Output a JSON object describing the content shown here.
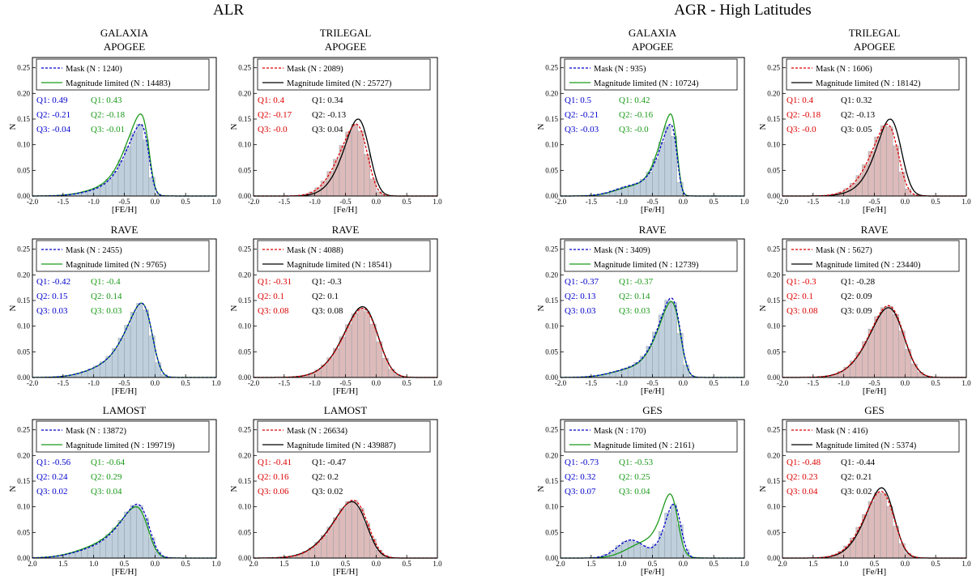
{
  "groups": [
    {
      "title": "ALR"
    },
    {
      "title": "AGR - High Latitudes"
    }
  ],
  "colors": {
    "galaxia_mask": "#0000cc",
    "galaxia_mag": "#1a9a1a",
    "trilegal_mask": "#dd0000",
    "trilegal_mag": "#000000",
    "galaxia_hist": "#a9bfd0",
    "trilegal_hist": "#d2a4a3"
  },
  "chart_data": [
    {
      "type": "area",
      "group": 0,
      "model": "GALAXIA",
      "survey": "APOGEE",
      "title": "GALAXIA",
      "subtitle": "APOGEE",
      "xlabel": "[FE/H]",
      "ylabel": "N",
      "xlim": [
        -2.0,
        1.0
      ],
      "ylim": [
        0,
        0.27
      ],
      "xticks": [
        "-2.0",
        "-1.5",
        "-1.0",
        "-0.5",
        "0.0",
        "0.5",
        "1.0"
      ],
      "yticks": [
        "0.00",
        "0.05",
        "0.10",
        "0.15",
        "0.20",
        "0.25"
      ],
      "legend": {
        "mask": "Mask (N : 1240)",
        "mag": "Magnitude limited (N : 14483)"
      },
      "quantiles": {
        "mask": [
          "Q1:  0.49",
          "Q2: -0.21",
          "Q3: -0.04"
        ],
        "mag": [
          "Q1:  0.43",
          "Q2: -0.18",
          "Q3: -0.01"
        ]
      },
      "curves": {
        "mask": {
          "mu": -0.1,
          "sigma": 0.32,
          "skew": -4,
          "peak": 0.14,
          "mu2": -0.8,
          "s2": 0.35,
          "f2": 0.15
        },
        "mag": {
          "mu": -0.1,
          "sigma": 0.32,
          "skew": -4,
          "peak": 0.16,
          "mu2": -0.8,
          "s2": 0.35,
          "f2": 0.15
        }
      }
    },
    {
      "type": "area",
      "group": 0,
      "model": "TRILEGAL",
      "survey": "APOGEE",
      "title": "TRILEGAL",
      "subtitle": "APOGEE",
      "xlabel": "[Fe/H]",
      "ylabel": "N",
      "xlim": [
        -2.0,
        1.0
      ],
      "ylim": [
        0,
        0.27
      ],
      "xticks": [
        "-2.0",
        "-1.5",
        "-1.0",
        "-0.5",
        "0.0",
        "0.5",
        "1.0"
      ],
      "yticks": [
        "0.00",
        "0.05",
        "0.10",
        "0.15",
        "0.20",
        "0.25"
      ],
      "legend": {
        "mask": "Mask (N : 2089)",
        "mag": "Magnitude limited (N : 25727)"
      },
      "quantiles": {
        "mask": [
          "Q1:  0.4",
          "Q2: -0.17",
          "Q3: -0.0"
        ],
        "mag": [
          "Q1:  0.34",
          "Q2: -0.13",
          "Q3: 0.04"
        ]
      },
      "curves": {
        "mask": {
          "mu": -0.15,
          "sigma": 0.33,
          "skew": -2.5,
          "peak": 0.14,
          "mu2": -0.6,
          "s2": 0.25,
          "f2": 0.2
        },
        "mag": {
          "mu": -0.13,
          "sigma": 0.3,
          "skew": -2,
          "peak": 0.15,
          "mu2": -0.6,
          "s2": 0.25,
          "f2": 0.1
        }
      }
    },
    {
      "type": "area",
      "group": 1,
      "model": "GALAXIA",
      "survey": "APOGEE",
      "title": "GALAXIA",
      "subtitle": "APOGEE",
      "xlabel": "[Fe/H]",
      "ylabel": "N",
      "xlim": [
        -2.0,
        1.0
      ],
      "ylim": [
        0,
        0.27
      ],
      "xticks": [
        "-2.0",
        "-1.5",
        "-1.0",
        "-0.5",
        "0.0",
        "0.5",
        "1.0"
      ],
      "yticks": [
        "0.00",
        "0.05",
        "0.10",
        "0.15",
        "0.20",
        "0.25"
      ],
      "legend": {
        "mask": "Mask (N : 935)",
        "mag": "Magnitude limited (N : 10724)"
      },
      "quantiles": {
        "mask": [
          "Q1:  0.5",
          "Q2: -0.21",
          "Q3: -0.03"
        ],
        "mag": [
          "Q1:  0.42",
          "Q2: -0.16",
          "Q3: -0.0"
        ]
      },
      "curves": {
        "mask": {
          "mu": -0.1,
          "sigma": 0.25,
          "skew": -4,
          "peak": 0.14,
          "mu2": -0.8,
          "s2": 0.3,
          "f2": 0.25
        },
        "mag": {
          "mu": -0.1,
          "sigma": 0.25,
          "skew": -4,
          "peak": 0.16,
          "mu2": -0.8,
          "s2": 0.3,
          "f2": 0.2
        }
      }
    },
    {
      "type": "area",
      "group": 1,
      "model": "TRILEGAL",
      "survey": "APOGEE",
      "title": "TRILEGAL",
      "subtitle": "APOGEE",
      "xlabel": "[Fe/H]",
      "ylabel": "N",
      "xlim": [
        -2.0,
        1.0
      ],
      "ylim": [
        0,
        0.27
      ],
      "xticks": [
        "-2.0",
        "-1.5",
        "-1.0",
        "-0.5",
        "0.0",
        "0.5",
        "1.0"
      ],
      "yticks": [
        "0.00",
        "0.05",
        "0.10",
        "0.15",
        "0.20",
        "0.25"
      ],
      "legend": {
        "mask": "Mask (N : 1606)",
        "mag": "Magnitude limited (N : 18142)"
      },
      "quantiles": {
        "mask": [
          "Q1:  0.4",
          "Q2: -0.18",
          "Q3: -0.0"
        ],
        "mag": [
          "Q1:  0.32",
          "Q2: -0.13",
          "Q3: 0.05"
        ]
      },
      "curves": {
        "mask": {
          "mu": -0.12,
          "sigma": 0.33,
          "skew": -2.5,
          "peak": 0.14,
          "mu2": -0.6,
          "s2": 0.3,
          "f2": 0.15
        },
        "mag": {
          "mu": -0.08,
          "sigma": 0.3,
          "skew": -2,
          "peak": 0.15,
          "mu2": -0.6,
          "s2": 0.3,
          "f2": 0.1
        }
      }
    },
    {
      "type": "area",
      "group": 0,
      "model": "GALAXIA",
      "survey": "RAVE",
      "title": "RAVE",
      "subtitle": "",
      "xlabel": "[FE/H]",
      "ylabel": "N",
      "xlim": [
        -2.0,
        1.0
      ],
      "ylim": [
        0,
        0.27
      ],
      "xticks": [
        "-2.0",
        "-1.5",
        "-1.0",
        "-0.5",
        "0.0",
        "0.5",
        "1.0"
      ],
      "yticks": [
        "0.00",
        "0.05",
        "0.10",
        "0.15",
        "0.20",
        "0.25"
      ],
      "legend": {
        "mask": "Mask (N : 2455)",
        "mag": "Magnitude limited (N : 9765)"
      },
      "quantiles": {
        "mask": [
          "Q1: -0.42",
          "Q2:  0.15",
          "Q3: 0.03"
        ],
        "mag": [
          "Q1: -0.4",
          "Q2:  0.14",
          "Q3: 0.03"
        ]
      },
      "curves": {
        "mask": {
          "mu": -0.05,
          "sigma": 0.35,
          "skew": -3,
          "peak": 0.145,
          "mu2": -0.8,
          "s2": 0.35,
          "f2": 0.2
        },
        "mag": {
          "mu": -0.05,
          "sigma": 0.35,
          "skew": -3,
          "peak": 0.145,
          "mu2": -0.8,
          "s2": 0.35,
          "f2": 0.2
        }
      }
    },
    {
      "type": "area",
      "group": 0,
      "model": "TRILEGAL",
      "survey": "RAVE",
      "title": "RAVE",
      "subtitle": "",
      "xlabel": "[FE/H]",
      "ylabel": "N",
      "xlim": [
        -2.0,
        1.0
      ],
      "ylim": [
        0,
        0.27
      ],
      "xticks": [
        "-2.0",
        "-1.5",
        "-1.0",
        "-0.5",
        "0.0",
        "0.5",
        "1.0"
      ],
      "yticks": [
        "0.00",
        "0.05",
        "0.10",
        "0.15",
        "0.20",
        "0.25"
      ],
      "legend": {
        "mask": "Mask (N : 4088)",
        "mag": "Magnitude limited (N : 18541)"
      },
      "quantiles": {
        "mask": [
          "Q1: -0.31",
          "Q2:  0.1",
          "Q3: 0.08"
        ],
        "mag": [
          "Q1: -0.3",
          "Q2:  0.1",
          "Q3: 0.08"
        ]
      },
      "curves": {
        "mask": {
          "mu": 0.0,
          "sigma": 0.42,
          "skew": -2,
          "peak": 0.135,
          "mu2": 0,
          "s2": 0.3,
          "f2": 0
        },
        "mag": {
          "mu": 0.0,
          "sigma": 0.42,
          "skew": -2,
          "peak": 0.138,
          "mu2": 0,
          "s2": 0.3,
          "f2": 0
        }
      }
    },
    {
      "type": "area",
      "group": 1,
      "model": "GALAXIA",
      "survey": "RAVE",
      "title": "RAVE",
      "subtitle": "",
      "xlabel": "[Fe/H]",
      "ylabel": "N",
      "xlim": [
        -2.0,
        1.0
      ],
      "ylim": [
        0,
        0.27
      ],
      "xticks": [
        "-2.0",
        "-1.5",
        "-1.0",
        "-0.5",
        "0.0",
        "0.5",
        "1.0"
      ],
      "yticks": [
        "0.00",
        "0.05",
        "0.10",
        "0.15",
        "0.20",
        "0.25"
      ],
      "legend": {
        "mask": "Mask (N : 3409)",
        "mag": "Magnitude limited (N : 12739)"
      },
      "quantiles": {
        "mask": [
          "Q1: -0.37",
          "Q2:  0.13",
          "Q3: 0.03"
        ],
        "mag": [
          "Q1: -0.37",
          "Q2:  0.14",
          "Q3: 0.03"
        ]
      },
      "curves": {
        "mask": {
          "mu": -0.05,
          "sigma": 0.3,
          "skew": -3,
          "peak": 0.155,
          "mu2": -0.8,
          "s2": 0.35,
          "f2": 0.18
        },
        "mag": {
          "mu": -0.05,
          "sigma": 0.3,
          "skew": -3,
          "peak": 0.148,
          "mu2": -0.8,
          "s2": 0.35,
          "f2": 0.18
        }
      }
    },
    {
      "type": "area",
      "group": 1,
      "model": "TRILEGAL",
      "survey": "RAVE",
      "title": "RAVE",
      "subtitle": "",
      "xlabel": "[Fe/H]",
      "ylabel": "N",
      "xlim": [
        -2.0,
        1.0
      ],
      "ylim": [
        0,
        0.27
      ],
      "xticks": [
        "-2.0",
        "-1.5",
        "-1.0",
        "-0.5",
        "0.0",
        "0.5",
        "1.0"
      ],
      "yticks": [
        "0.00",
        "0.05",
        "0.10",
        "0.15",
        "0.20",
        "0.25"
      ],
      "legend": {
        "mask": "Mask (N : 5627)",
        "mag": "Magnitude limited (N : 23440)"
      },
      "quantiles": {
        "mask": [
          "Q1: -0.3",
          "Q2:  0.1",
          "Q3: 0.08"
        ],
        "mag": [
          "Q1: -0.28",
          "Q2:  0.09",
          "Q3: 0.09"
        ]
      },
      "curves": {
        "mask": {
          "mu": -0.05,
          "sigma": 0.42,
          "skew": -2,
          "peak": 0.14,
          "mu2": 0,
          "s2": 0.3,
          "f2": 0
        },
        "mag": {
          "mu": -0.05,
          "sigma": 0.42,
          "skew": -2,
          "peak": 0.136,
          "mu2": 0,
          "s2": 0.3,
          "f2": 0
        }
      }
    },
    {
      "type": "area",
      "group": 0,
      "model": "GALAXIA",
      "survey": "LAMOST",
      "title": "LAMOST",
      "subtitle": "",
      "xlabel": "[FE/H]",
      "ylabel": "N",
      "xlim": [
        -2.0,
        1.0
      ],
      "ylim": [
        0,
        0.27
      ],
      "xticks": [
        "2.0",
        "1.5",
        "1.0",
        "0.5",
        "0.0",
        "0.5",
        "1.0"
      ],
      "yticks": [
        "0.00",
        "0.05",
        "0.10",
        "0.15",
        "0.20",
        "0.25"
      ],
      "legend": {
        "mask": "Mask (N : 13872)",
        "mag": "Magnitude limited (N : 199719)"
      },
      "quantiles": {
        "mask": [
          "Q1: -0.56",
          "Q2:  0.24",
          "Q3: 0.02"
        ],
        "mag": [
          "Q1: -0.64",
          "Q2:  0.29",
          "Q3: 0.04"
        ]
      },
      "curves": {
        "mask": {
          "mu": -0.1,
          "sigma": 0.38,
          "skew": -3,
          "peak": 0.105,
          "mu2": -0.9,
          "s2": 0.4,
          "f2": 0.3
        },
        "mag": {
          "mu": -0.12,
          "sigma": 0.38,
          "skew": -3,
          "peak": 0.1,
          "mu2": -0.9,
          "s2": 0.4,
          "f2": 0.35
        }
      }
    },
    {
      "type": "area",
      "group": 0,
      "model": "TRILEGAL",
      "survey": "LAMOST",
      "title": "LAMOST",
      "subtitle": "",
      "xlabel": "[FE/H]",
      "ylabel": "N",
      "xlim": [
        -2.0,
        1.0
      ],
      "ylim": [
        0,
        0.27
      ],
      "xticks": [
        "2.0",
        "1.5",
        "1.0",
        "0.5",
        "0.0",
        "0.5",
        "1.0"
      ],
      "yticks": [
        "0.00",
        "0.05",
        "0.10",
        "0.15",
        "0.20",
        "0.25"
      ],
      "legend": {
        "mask": "Mask (N : 26634)",
        "mag": "Magnitude limited (N : 439887)"
      },
      "quantiles": {
        "mask": [
          "Q1: -0.41",
          "Q2:  0.16",
          "Q3: 0.06"
        ],
        "mag": [
          "Q1: -0.47",
          "Q2:  0.2",
          "Q3: 0.02"
        ]
      },
      "curves": {
        "mask": {
          "mu": -0.15,
          "sigma": 0.45,
          "skew": -2.5,
          "peak": 0.113,
          "mu2": 0,
          "s2": 0.3,
          "f2": 0
        },
        "mag": {
          "mu": -0.17,
          "sigma": 0.45,
          "skew": -2.5,
          "peak": 0.11,
          "mu2": 0,
          "s2": 0.3,
          "f2": 0
        }
      }
    },
    {
      "type": "area",
      "group": 1,
      "model": "GALAXIA",
      "survey": "GES",
      "title": "GES",
      "subtitle": "",
      "xlabel": "[Fe/H]",
      "ylabel": "N",
      "xlim": [
        -2.0,
        1.0
      ],
      "ylim": [
        0,
        0.27
      ],
      "xticks": [
        "2.0",
        "1.5",
        "1.0",
        "0.5",
        "0.0",
        "0.5",
        "1.0"
      ],
      "yticks": [
        "0.00",
        "0.05",
        "0.10",
        "0.15",
        "0.20",
        "0.25"
      ],
      "legend": {
        "mask": "Mask (N : 170)",
        "mag": "Magnitude limited (N : 2161)"
      },
      "quantiles": {
        "mask": [
          "Q1: -0.73",
          "Q2:  0.32",
          "Q3: 0.07"
        ],
        "mag": [
          "Q1: -0.53",
          "Q2:  0.25",
          "Q3: 0.04"
        ]
      },
      "curves": {
        "mask": {
          "mu": -0.05,
          "sigma": 0.2,
          "skew": -2,
          "peak": 0.105,
          "mu2": -0.85,
          "s2": 0.22,
          "f2": 0.5
        },
        "mag": {
          "mu": -0.1,
          "sigma": 0.2,
          "skew": -2,
          "peak": 0.125,
          "mu2": -0.6,
          "s2": 0.3,
          "f2": 0.4
        }
      }
    },
    {
      "type": "area",
      "group": 1,
      "model": "TRILEGAL",
      "survey": "GES",
      "title": "GES",
      "subtitle": "",
      "xlabel": "[Fe/H]",
      "ylabel": "N",
      "xlim": [
        -2.0,
        1.0
      ],
      "ylim": [
        0,
        0.27
      ],
      "xticks": [
        "2.0",
        "1.5",
        "1.0",
        "0.5",
        "0.0",
        "0.5",
        "1.0"
      ],
      "yticks": [
        "0.00",
        "0.05",
        "0.10",
        "0.15",
        "0.20",
        "0.25"
      ],
      "legend": {
        "mask": "Mask (N : 416)",
        "mag": "Magnitude limited (N : 5374)"
      },
      "quantiles": {
        "mask": [
          "Q1: -0.48",
          "Q2:  0.23",
          "Q3: 0.04"
        ],
        "mag": [
          "Q1: -0.44",
          "Q2:  0.21",
          "Q3: 0.02"
        ]
      },
      "curves": {
        "mask": {
          "mu": -0.2,
          "sigma": 0.35,
          "skew": -2,
          "peak": 0.13,
          "mu2": -0.6,
          "s2": 0.3,
          "f2": 0.15
        },
        "mag": {
          "mu": -0.2,
          "sigma": 0.33,
          "skew": -2,
          "peak": 0.137,
          "mu2": -0.6,
          "s2": 0.3,
          "f2": 0.15
        }
      }
    }
  ]
}
